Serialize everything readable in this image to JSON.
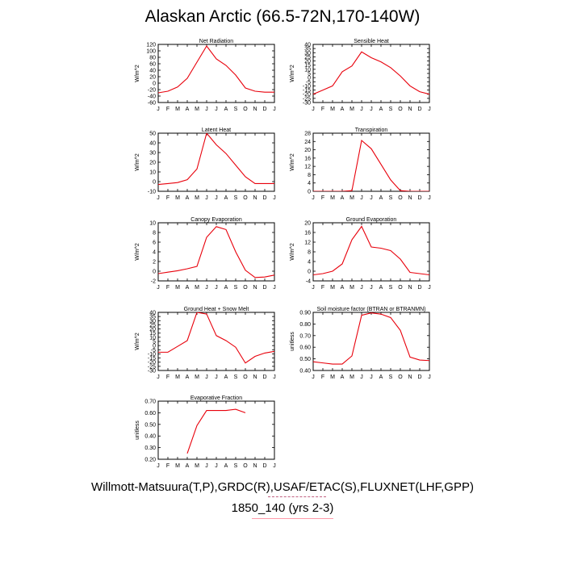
{
  "title": "Alaskan Arctic (66.5-72N,170-140W)",
  "footer": {
    "line1": "Willmott-Matsuura(T,P),GRDC(R),USAF/ETAC(S),FLUXNET(LHF,GPP)",
    "line2": "1850_140 (yrs 2-3)"
  },
  "colors": {
    "series": "#e8000b",
    "axis": "#000000"
  },
  "chart_data": [
    {
      "type": "line",
      "title": "Net Radiation",
      "ylabel": "W/m^2",
      "categories": [
        "J",
        "F",
        "M",
        "A",
        "M",
        "J",
        "J",
        "A",
        "S",
        "O",
        "N",
        "D",
        "J"
      ],
      "ylim": [
        -60,
        120
      ],
      "yticks": [
        -60,
        -40,
        -20,
        0,
        20,
        40,
        60,
        80,
        100,
        120
      ],
      "yticklabels": [
        "-60",
        "-40",
        "-20",
        "0",
        "20",
        "40",
        "60",
        "80",
        "100",
        "120"
      ],
      "values": [
        -30,
        -25,
        -12,
        15,
        65,
        115,
        75,
        55,
        25,
        -15,
        -25,
        -28,
        -28
      ]
    },
    {
      "type": "line",
      "title": "Sensible Heat",
      "ylabel": "W/m^2",
      "categories": [
        "J",
        "F",
        "M",
        "A",
        "M",
        "J",
        "J",
        "A",
        "S",
        "O",
        "N",
        "D",
        "J"
      ],
      "ylim": [
        -30,
        40
      ],
      "yticks": [
        -30,
        -25,
        -20,
        -15,
        -10,
        -5,
        0,
        5,
        10,
        15,
        20,
        25,
        30,
        35,
        40
      ],
      "yticklabels": [
        "-30",
        "-25",
        "-20",
        "-15",
        "-10",
        "-5",
        "0",
        "5",
        "10",
        "15",
        "20",
        "25",
        "30",
        "35",
        "40"
      ],
      "values": [
        -20,
        -15,
        -10,
        7,
        14,
        31,
        24,
        19,
        12,
        2,
        -10,
        -17,
        -20
      ]
    },
    {
      "type": "line",
      "title": "Latent Heat",
      "ylabel": "W/m^2",
      "categories": [
        "J",
        "F",
        "M",
        "A",
        "M",
        "J",
        "J",
        "A",
        "S",
        "O",
        "N",
        "D",
        "J"
      ],
      "ylim": [
        -10,
        50
      ],
      "yticks": [
        -10,
        0,
        10,
        20,
        30,
        40,
        50
      ],
      "yticklabels": [
        "-10",
        "0",
        "10",
        "20",
        "30",
        "40",
        "50"
      ],
      "values": [
        -3,
        -2,
        -1,
        2,
        13,
        50,
        38,
        29,
        17,
        5,
        -2,
        -2,
        -2
      ]
    },
    {
      "type": "line",
      "title": "Transpiration",
      "ylabel": "W/m^2",
      "categories": [
        "J",
        "F",
        "M",
        "A",
        "M",
        "J",
        "J",
        "A",
        "S",
        "O",
        "N",
        "D",
        "J"
      ],
      "ylim": [
        0,
        28
      ],
      "yticks": [
        0,
        4,
        8,
        12,
        16,
        20,
        24,
        28
      ],
      "yticklabels": [
        "0",
        "4",
        "8",
        "12",
        "16",
        "20",
        "24",
        "28"
      ],
      "values": [
        0,
        0,
        0,
        0,
        0.3,
        24.5,
        20.5,
        13,
        5.5,
        0.3,
        0,
        0,
        0
      ]
    },
    {
      "type": "line",
      "title": "Canopy Evaporation",
      "ylabel": "W/m^2",
      "categories": [
        "J",
        "F",
        "M",
        "A",
        "M",
        "J",
        "J",
        "A",
        "S",
        "O",
        "N",
        "D",
        "J"
      ],
      "ylim": [
        -2,
        10
      ],
      "yticks": [
        -2,
        0,
        2,
        4,
        6,
        8,
        10
      ],
      "yticklabels": [
        "-2",
        "0",
        "2",
        "4",
        "6",
        "8",
        "10"
      ],
      "values": [
        -0.5,
        -0.2,
        0.1,
        0.5,
        1,
        7,
        9.2,
        8.6,
        4,
        0.2,
        -1.3,
        -1.2,
        -0.8
      ]
    },
    {
      "type": "line",
      "title": "Ground Evaporation",
      "ylabel": "W/m^2",
      "categories": [
        "J",
        "F",
        "M",
        "A",
        "M",
        "J",
        "J",
        "A",
        "S",
        "O",
        "N",
        "D",
        "J"
      ],
      "ylim": [
        -4,
        20
      ],
      "yticks": [
        -4,
        0,
        4,
        8,
        12,
        16,
        20
      ],
      "yticklabels": [
        "-4",
        "0",
        "4",
        "8",
        "12",
        "16",
        "20"
      ],
      "values": [
        -1.5,
        -1,
        0,
        3,
        13,
        18.5,
        10,
        9.5,
        8.5,
        5,
        -0.5,
        -1,
        -1.5
      ]
    },
    {
      "type": "line",
      "title": "Ground Heat + Snow Melt",
      "ylabel": "W/m^2",
      "categories": [
        "J",
        "F",
        "M",
        "A",
        "M",
        "J",
        "J",
        "A",
        "S",
        "O",
        "N",
        "D",
        "J"
      ],
      "ylim": [
        -30,
        40
      ],
      "yticks": [
        -30,
        -25,
        -20,
        -15,
        -10,
        -5,
        0,
        5,
        10,
        15,
        20,
        25,
        30,
        35,
        40
      ],
      "yticklabels": [
        "-30",
        "-25",
        "-20",
        "-15",
        "-10",
        "-5",
        "0",
        "5",
        "10",
        "15",
        "20",
        "25",
        "30",
        "35",
        "40"
      ],
      "values": [
        -8,
        -8,
        -1,
        6,
        40,
        38,
        12,
        6,
        -2,
        -21,
        -13,
        -9,
        -7
      ]
    },
    {
      "type": "line",
      "title": "Soil moisture factor (BTRAN or BTRANMN)",
      "ylabel": "unitless",
      "categories": [
        "J",
        "F",
        "M",
        "A",
        "M",
        "J",
        "J",
        "A",
        "S",
        "O",
        "N",
        "D",
        "J"
      ],
      "ylim": [
        0.4,
        0.9
      ],
      "yticks": [
        0.4,
        0.5,
        0.6,
        0.7,
        0.8,
        0.9
      ],
      "yticklabels": [
        "0.40",
        "0.50",
        "0.60",
        "0.70",
        "0.80",
        "0.90"
      ],
      "values": [
        0.475,
        0.465,
        0.455,
        0.455,
        0.525,
        0.875,
        0.895,
        0.885,
        0.855,
        0.745,
        0.515,
        0.49,
        0.485
      ]
    },
    {
      "type": "line",
      "title": "Evaporative Fraction",
      "ylabel": "unitless",
      "categories": [
        "J",
        "F",
        "M",
        "A",
        "M",
        "J",
        "J",
        "A",
        "S",
        "O",
        "N",
        "D",
        "J"
      ],
      "ylim": [
        0.2,
        0.7
      ],
      "yticks": [
        0.2,
        0.3,
        0.4,
        0.5,
        0.6,
        0.7
      ],
      "yticklabels": [
        "0.20",
        "0.30",
        "0.40",
        "0.50",
        "0.60",
        "0.70"
      ],
      "values": [
        null,
        null,
        null,
        0.25,
        0.49,
        0.62,
        0.62,
        0.62,
        0.63,
        0.6,
        null,
        null,
        null
      ]
    }
  ]
}
